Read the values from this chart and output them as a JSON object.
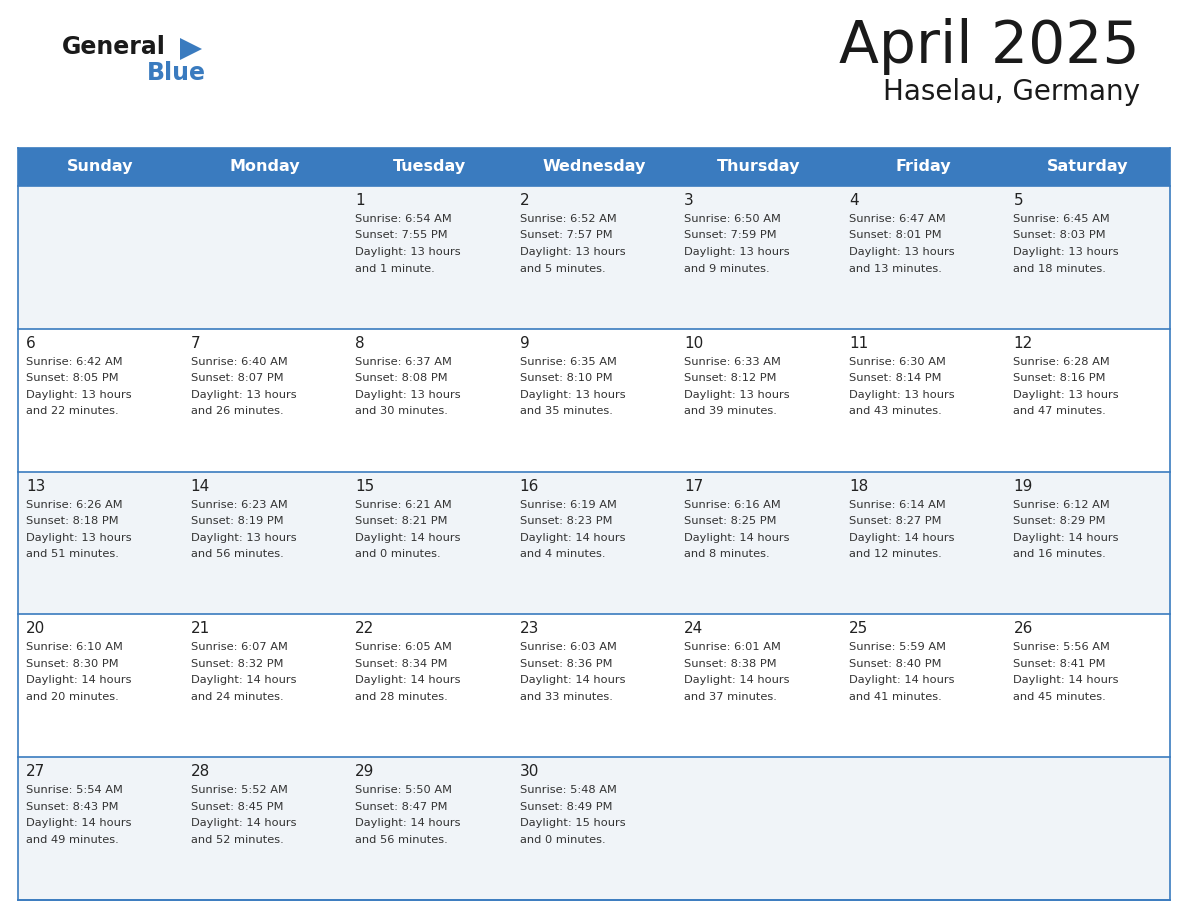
{
  "title": "April 2025",
  "subtitle": "Haselau, Germany",
  "header_bg": "#3a7bbf",
  "header_text_color": "#ffffff",
  "weekdays": [
    "Sunday",
    "Monday",
    "Tuesday",
    "Wednesday",
    "Thursday",
    "Friday",
    "Saturday"
  ],
  "cell_bg_even": "#f0f4f8",
  "cell_bg_odd": "#ffffff",
  "divider_color": "#3a7bbf",
  "text_color": "#333333",
  "day_number_color": "#222222",
  "weeks": [
    [
      {
        "day": "",
        "sunrise": "",
        "sunset": "",
        "daylight": ""
      },
      {
        "day": "",
        "sunrise": "",
        "sunset": "",
        "daylight": ""
      },
      {
        "day": "1",
        "sunrise": "6:54 AM",
        "sunset": "7:55 PM",
        "daylight": "13 hours and 1 minute."
      },
      {
        "day": "2",
        "sunrise": "6:52 AM",
        "sunset": "7:57 PM",
        "daylight": "13 hours and 5 minutes."
      },
      {
        "day": "3",
        "sunrise": "6:50 AM",
        "sunset": "7:59 PM",
        "daylight": "13 hours and 9 minutes."
      },
      {
        "day": "4",
        "sunrise": "6:47 AM",
        "sunset": "8:01 PM",
        "daylight": "13 hours and 13 minutes."
      },
      {
        "day": "5",
        "sunrise": "6:45 AM",
        "sunset": "8:03 PM",
        "daylight": "13 hours and 18 minutes."
      }
    ],
    [
      {
        "day": "6",
        "sunrise": "6:42 AM",
        "sunset": "8:05 PM",
        "daylight": "13 hours and 22 minutes."
      },
      {
        "day": "7",
        "sunrise": "6:40 AM",
        "sunset": "8:07 PM",
        "daylight": "13 hours and 26 minutes."
      },
      {
        "day": "8",
        "sunrise": "6:37 AM",
        "sunset": "8:08 PM",
        "daylight": "13 hours and 30 minutes."
      },
      {
        "day": "9",
        "sunrise": "6:35 AM",
        "sunset": "8:10 PM",
        "daylight": "13 hours and 35 minutes."
      },
      {
        "day": "10",
        "sunrise": "6:33 AM",
        "sunset": "8:12 PM",
        "daylight": "13 hours and 39 minutes."
      },
      {
        "day": "11",
        "sunrise": "6:30 AM",
        "sunset": "8:14 PM",
        "daylight": "13 hours and 43 minutes."
      },
      {
        "day": "12",
        "sunrise": "6:28 AM",
        "sunset": "8:16 PM",
        "daylight": "13 hours and 47 minutes."
      }
    ],
    [
      {
        "day": "13",
        "sunrise": "6:26 AM",
        "sunset": "8:18 PM",
        "daylight": "13 hours and 51 minutes."
      },
      {
        "day": "14",
        "sunrise": "6:23 AM",
        "sunset": "8:19 PM",
        "daylight": "13 hours and 56 minutes."
      },
      {
        "day": "15",
        "sunrise": "6:21 AM",
        "sunset": "8:21 PM",
        "daylight": "14 hours and 0 minutes."
      },
      {
        "day": "16",
        "sunrise": "6:19 AM",
        "sunset": "8:23 PM",
        "daylight": "14 hours and 4 minutes."
      },
      {
        "day": "17",
        "sunrise": "6:16 AM",
        "sunset": "8:25 PM",
        "daylight": "14 hours and 8 minutes."
      },
      {
        "day": "18",
        "sunrise": "6:14 AM",
        "sunset": "8:27 PM",
        "daylight": "14 hours and 12 minutes."
      },
      {
        "day": "19",
        "sunrise": "6:12 AM",
        "sunset": "8:29 PM",
        "daylight": "14 hours and 16 minutes."
      }
    ],
    [
      {
        "day": "20",
        "sunrise": "6:10 AM",
        "sunset": "8:30 PM",
        "daylight": "14 hours and 20 minutes."
      },
      {
        "day": "21",
        "sunrise": "6:07 AM",
        "sunset": "8:32 PM",
        "daylight": "14 hours and 24 minutes."
      },
      {
        "day": "22",
        "sunrise": "6:05 AM",
        "sunset": "8:34 PM",
        "daylight": "14 hours and 28 minutes."
      },
      {
        "day": "23",
        "sunrise": "6:03 AM",
        "sunset": "8:36 PM",
        "daylight": "14 hours and 33 minutes."
      },
      {
        "day": "24",
        "sunrise": "6:01 AM",
        "sunset": "8:38 PM",
        "daylight": "14 hours and 37 minutes."
      },
      {
        "day": "25",
        "sunrise": "5:59 AM",
        "sunset": "8:40 PM",
        "daylight": "14 hours and 41 minutes."
      },
      {
        "day": "26",
        "sunrise": "5:56 AM",
        "sunset": "8:41 PM",
        "daylight": "14 hours and 45 minutes."
      }
    ],
    [
      {
        "day": "27",
        "sunrise": "5:54 AM",
        "sunset": "8:43 PM",
        "daylight": "14 hours and 49 minutes."
      },
      {
        "day": "28",
        "sunrise": "5:52 AM",
        "sunset": "8:45 PM",
        "daylight": "14 hours and 52 minutes."
      },
      {
        "day": "29",
        "sunrise": "5:50 AM",
        "sunset": "8:47 PM",
        "daylight": "14 hours and 56 minutes."
      },
      {
        "day": "30",
        "sunrise": "5:48 AM",
        "sunset": "8:49 PM",
        "daylight": "15 hours and 0 minutes."
      },
      {
        "day": "",
        "sunrise": "",
        "sunset": "",
        "daylight": ""
      },
      {
        "day": "",
        "sunrise": "",
        "sunset": "",
        "daylight": ""
      },
      {
        "day": "",
        "sunrise": "",
        "sunset": "",
        "daylight": ""
      }
    ]
  ]
}
